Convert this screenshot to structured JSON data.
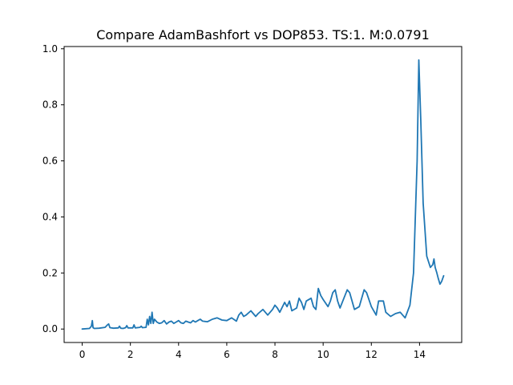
{
  "chart_data": {
    "type": "line",
    "title": "Compare AdamBashfort vs DOP853. TS:1. M:0.0791",
    "xlabel": "",
    "ylabel": "",
    "xlim": [
      -0.75,
      15.75
    ],
    "ylim": [
      -0.048,
      1.008
    ],
    "x_ticks": [
      0,
      2,
      4,
      6,
      8,
      10,
      12,
      14
    ],
    "x_tick_labels": [
      "0",
      "2",
      "4",
      "6",
      "8",
      "10",
      "12",
      "14"
    ],
    "y_ticks": [
      0.0,
      0.2,
      0.4,
      0.6,
      0.8,
      1.0
    ],
    "y_tick_labels": [
      "0.0",
      "0.2",
      "0.4",
      "0.6",
      "0.8",
      "1.0"
    ],
    "grid": false,
    "series": [
      {
        "color": "#1f77b4",
        "x": [
          0.0,
          0.3,
          0.38,
          0.42,
          0.45,
          0.5,
          0.7,
          0.95,
          1.05,
          1.1,
          1.15,
          1.3,
          1.5,
          1.55,
          1.6,
          1.7,
          1.8,
          1.85,
          1.9,
          2.1,
          2.15,
          2.2,
          2.4,
          2.45,
          2.5,
          2.65,
          2.7,
          2.75,
          2.8,
          2.85,
          2.9,
          2.95,
          3.0,
          3.1,
          3.2,
          3.3,
          3.4,
          3.5,
          3.6,
          3.7,
          3.8,
          3.9,
          4.0,
          4.1,
          4.2,
          4.3,
          4.4,
          4.5,
          4.6,
          4.7,
          4.8,
          4.9,
          5.0,
          5.2,
          5.4,
          5.6,
          5.8,
          6.0,
          6.2,
          6.4,
          6.5,
          6.6,
          6.7,
          6.8,
          7.0,
          7.2,
          7.3,
          7.5,
          7.6,
          7.7,
          7.9,
          8.0,
          8.1,
          8.2,
          8.4,
          8.5,
          8.6,
          8.7,
          8.9,
          9.0,
          9.1,
          9.2,
          9.3,
          9.5,
          9.6,
          9.7,
          9.8,
          9.9,
          10.0,
          10.2,
          10.3,
          10.4,
          10.5,
          10.6,
          10.7,
          11.0,
          11.1,
          11.2,
          11.3,
          11.5,
          11.7,
          11.8,
          12.0,
          12.2,
          12.3,
          12.5,
          12.6,
          12.8,
          13.0,
          13.2,
          13.4,
          13.6,
          13.75,
          13.9,
          13.97,
          14.05,
          14.15,
          14.3,
          14.45,
          14.55,
          14.6,
          14.65,
          14.72,
          14.78,
          14.85,
          14.92,
          15.0
        ],
        "y": [
          0.0,
          0.002,
          0.01,
          0.03,
          0.005,
          0.002,
          0.003,
          0.006,
          0.015,
          0.018,
          0.005,
          0.003,
          0.004,
          0.01,
          0.003,
          0.002,
          0.005,
          0.012,
          0.004,
          0.004,
          0.015,
          0.004,
          0.006,
          0.01,
          0.005,
          0.006,
          0.035,
          0.015,
          0.045,
          0.02,
          0.06,
          0.02,
          0.035,
          0.025,
          0.02,
          0.022,
          0.03,
          0.018,
          0.025,
          0.028,
          0.02,
          0.025,
          0.03,
          0.022,
          0.02,
          0.028,
          0.025,
          0.022,
          0.03,
          0.025,
          0.03,
          0.035,
          0.028,
          0.026,
          0.035,
          0.04,
          0.032,
          0.03,
          0.04,
          0.028,
          0.05,
          0.06,
          0.045,
          0.05,
          0.065,
          0.045,
          0.055,
          0.07,
          0.06,
          0.05,
          0.07,
          0.085,
          0.075,
          0.06,
          0.095,
          0.08,
          0.1,
          0.065,
          0.075,
          0.11,
          0.095,
          0.07,
          0.1,
          0.11,
          0.08,
          0.07,
          0.145,
          0.12,
          0.105,
          0.08,
          0.1,
          0.13,
          0.14,
          0.1,
          0.075,
          0.14,
          0.13,
          0.1,
          0.07,
          0.08,
          0.14,
          0.13,
          0.08,
          0.05,
          0.1,
          0.1,
          0.06,
          0.045,
          0.055,
          0.06,
          0.04,
          0.085,
          0.2,
          0.6,
          0.96,
          0.75,
          0.45,
          0.26,
          0.22,
          0.23,
          0.25,
          0.22,
          0.2,
          0.18,
          0.16,
          0.17,
          0.19
        ]
      }
    ]
  }
}
